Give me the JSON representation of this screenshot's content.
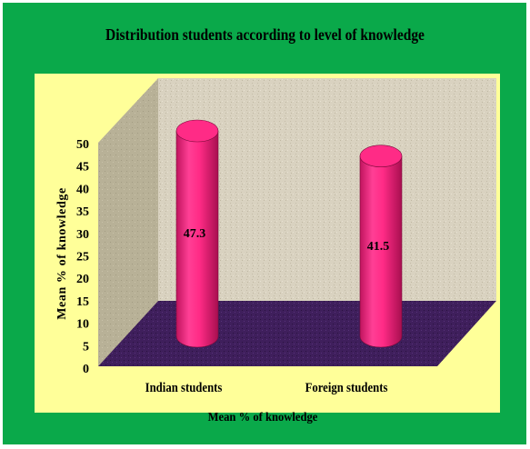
{
  "colors": {
    "frame": "#0aa94a",
    "plot_area": "#ffff99",
    "back_wall": "#d9d2c0",
    "side_wall": "#b8b197",
    "floor": "#3f1f5c",
    "bar": "#ff2b86"
  },
  "chart_data": {
    "type": "bar",
    "title": "Distribution students according to  level of knowledge",
    "xlabel": "Mean % of knowledge",
    "ylabel": "Mean % of knowledge",
    "categories": [
      "Indian students",
      "Foreign students"
    ],
    "values": [
      47.3,
      41.5
    ],
    "data_labels": [
      "47.3",
      "41.5"
    ],
    "ylim": [
      0,
      50
    ],
    "yticks": [
      "0",
      "5",
      "10",
      "15",
      "20",
      "25",
      "30",
      "35",
      "40",
      "45",
      "50"
    ],
    "style": "3d-cylinder",
    "grid": false,
    "legend": "none"
  }
}
